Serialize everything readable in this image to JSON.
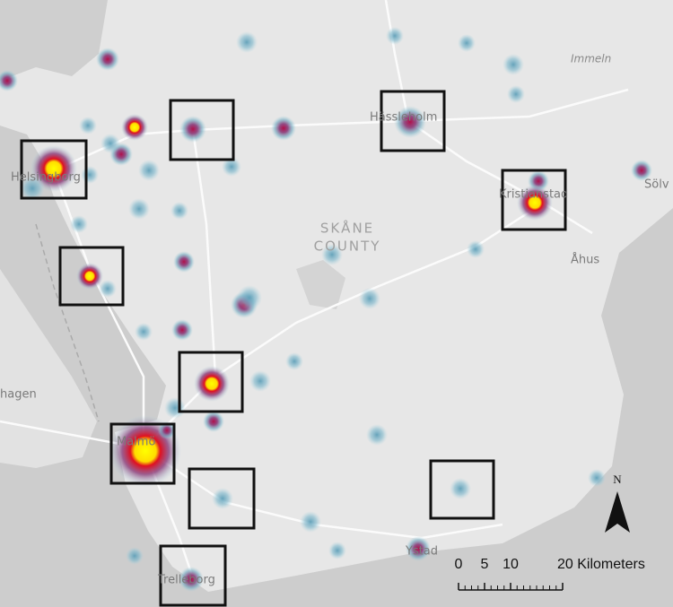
{
  "map": {
    "labels": [
      "Immeln",
      "Hässleholm",
      "Helsingborg",
      "Kristianstad",
      "Åhus",
      "Sölv",
      "hagen",
      "Ystad",
      "Trelleborg",
      "Malmö"
    ],
    "county_label": [
      "SKÅNE",
      "COUNTY"
    ],
    "scale_bar": {
      "ticks": [
        0,
        5,
        10,
        {
          "value": 20,
          "label": "20 Kilometers"
        }
      ]
    },
    "north": "N"
  }
}
